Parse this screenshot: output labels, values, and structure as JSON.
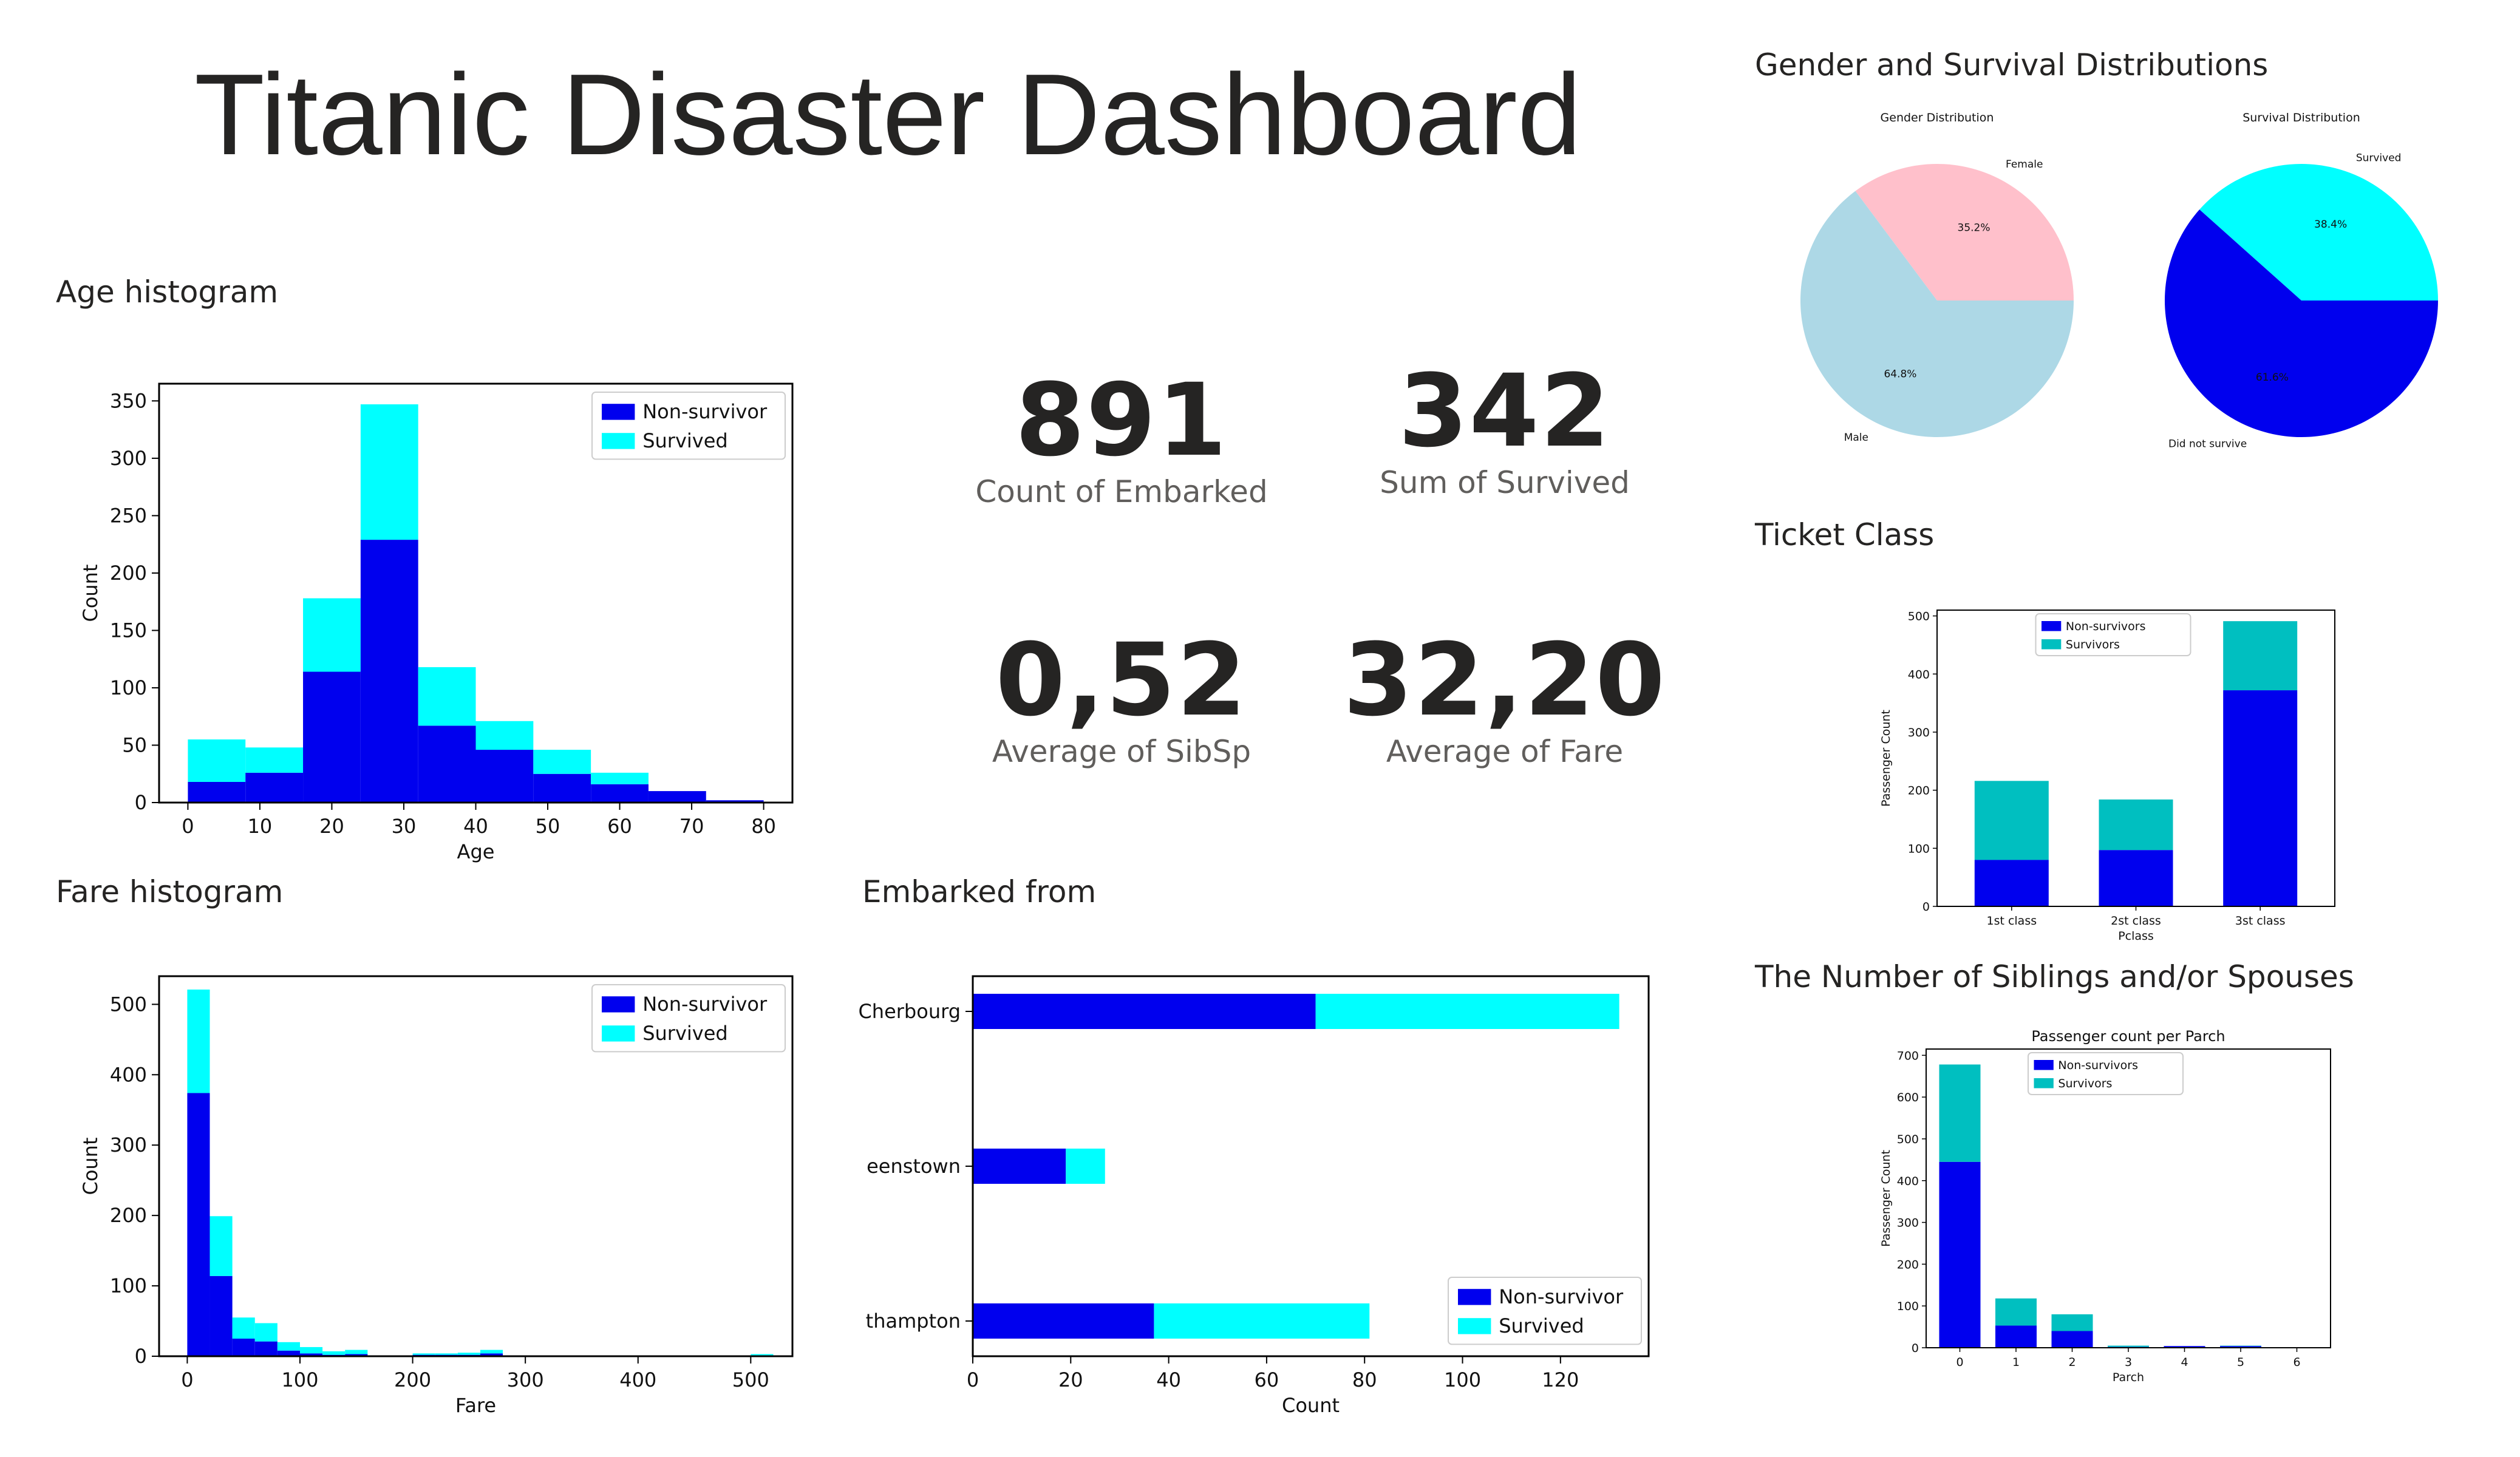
{
  "dashboard": {
    "title": "Titanic Disaster Dashboard",
    "sections": {
      "age": "Age histogram",
      "fare": "Fare histogram",
      "embarked": "Embarked from",
      "gender_survival": "Gender and Survival Distributions",
      "ticket": "Ticket Class",
      "siblings": "The Number of Siblings and/or Spouses"
    }
  },
  "kpis": [
    {
      "value": "891",
      "label": "Count of Embarked"
    },
    {
      "value": "342",
      "label": "Sum of Survived"
    },
    {
      "value": "0,52",
      "label": "Average of SibSp"
    },
    {
      "value": "32,20",
      "label": "Average of Fare"
    }
  ],
  "colors": {
    "nonsurvivor": "#0000ee",
    "survived": "#00ffff",
    "survivors_teal": "#00bfc0",
    "female": "#ffc0cb",
    "male": "#add8e6"
  },
  "chart_data": [
    {
      "id": "age",
      "type": "bar",
      "stacked": true,
      "bins": [
        [
          0,
          8
        ],
        [
          8,
          16
        ],
        [
          16,
          24
        ],
        [
          24,
          32
        ],
        [
          32,
          40
        ],
        [
          40,
          48
        ],
        [
          48,
          56
        ],
        [
          56,
          64
        ],
        [
          64,
          72
        ],
        [
          72,
          80
        ]
      ],
      "series": [
        {
          "name": "Non-survivor",
          "values": [
            18,
            26,
            114,
            229,
            67,
            46,
            25,
            16,
            10,
            2
          ]
        },
        {
          "name": "Survived",
          "values": [
            37,
            22,
            64,
            118,
            51,
            25,
            21,
            10,
            0,
            0
          ]
        }
      ],
      "xlabel": "Age",
      "ylabel": "Count",
      "xlim": [
        -4,
        84
      ],
      "ylim": [
        0,
        365
      ],
      "xticks": [
        0,
        10,
        20,
        30,
        40,
        50,
        60,
        70,
        80
      ],
      "yticks": [
        0,
        50,
        100,
        150,
        200,
        250,
        300,
        350
      ],
      "legend": "top-right"
    },
    {
      "id": "fare",
      "type": "bar",
      "stacked": true,
      "bins": [
        [
          0,
          20
        ],
        [
          20,
          40
        ],
        [
          40,
          60
        ],
        [
          60,
          80
        ],
        [
          80,
          100
        ],
        [
          100,
          120
        ],
        [
          120,
          140
        ],
        [
          140,
          160
        ],
        [
          200,
          220
        ],
        [
          220,
          240
        ],
        [
          240,
          260
        ],
        [
          260,
          280
        ],
        [
          500,
          520
        ]
      ],
      "series": [
        {
          "name": "Non-survivor",
          "values": [
            374,
            114,
            25,
            21,
            8,
            4,
            2,
            3,
            2,
            2,
            2,
            4,
            0
          ]
        },
        {
          "name": "Survived",
          "values": [
            147,
            85,
            30,
            26,
            12,
            9,
            5,
            6,
            2,
            2,
            3,
            5,
            3
          ]
        }
      ],
      "xlabel": "Fare",
      "ylabel": "Count",
      "xlim": [
        -25,
        537
      ],
      "ylim": [
        0,
        540
      ],
      "xticks": [
        0,
        100,
        200,
        300,
        400,
        500
      ],
      "yticks": [
        0,
        100,
        200,
        300,
        400,
        500
      ],
      "legend": "top-right"
    },
    {
      "id": "embarked",
      "type": "bar",
      "orientation": "horizontal",
      "stacked": true,
      "categories": [
        "Cherbourg",
        "Queenstown",
        "Southampton"
      ],
      "category_display": [
        "Cherbourg",
        "eenstown",
        "thampton"
      ],
      "series": [
        {
          "name": "Non-survivor",
          "values": [
            70,
            19,
            37
          ]
        },
        {
          "name": "Survived",
          "values": [
            62,
            8,
            44
          ]
        }
      ],
      "xlabel": "Count",
      "xlim": [
        0,
        138
      ],
      "xticks": [
        0,
        20,
        40,
        60,
        80,
        100,
        120
      ],
      "legend": "bottom-right"
    },
    {
      "id": "gender",
      "type": "pie",
      "title": "Gender Distribution",
      "slices": [
        {
          "label": "Female",
          "value": 35.2,
          "pct": "35.2%"
        },
        {
          "label": "Male",
          "value": 64.8,
          "pct": "64.8%"
        }
      ]
    },
    {
      "id": "survival",
      "type": "pie",
      "title": "Survival Distribution",
      "slices": [
        {
          "label": "Survived",
          "value": 38.4,
          "pct": "38.4%"
        },
        {
          "label": "Did not survive",
          "value": 61.6,
          "pct": "61.6%"
        }
      ]
    },
    {
      "id": "ticket",
      "type": "bar",
      "stacked": true,
      "categories": [
        "1st class",
        "2st class",
        "3st class"
      ],
      "series": [
        {
          "name": "Non-survivors",
          "values": [
            80,
            97,
            372
          ]
        },
        {
          "name": "Survivors",
          "values": [
            136,
            87,
            119
          ]
        }
      ],
      "xlabel": "Pclass",
      "ylabel": "Passenger Count",
      "ylim": [
        0,
        510
      ],
      "yticks": [
        0,
        100,
        200,
        300,
        400,
        500
      ],
      "legend": "top-center"
    },
    {
      "id": "parch",
      "type": "bar",
      "stacked": true,
      "title": "Passenger count per Parch",
      "categories": [
        "0",
        "1",
        "2",
        "3",
        "4",
        "5",
        "6"
      ],
      "series": [
        {
          "name": "Non-survivors",
          "values": [
            445,
            53,
            40,
            2,
            4,
            4,
            1
          ]
        },
        {
          "name": "Survivors",
          "values": [
            233,
            65,
            40,
            3,
            0,
            1,
            0
          ]
        }
      ],
      "xlabel": "Parch",
      "ylabel": "Passenger Count",
      "ylim": [
        0,
        715
      ],
      "yticks": [
        0,
        100,
        200,
        300,
        400,
        500,
        600,
        700
      ],
      "legend": "top-center"
    }
  ]
}
